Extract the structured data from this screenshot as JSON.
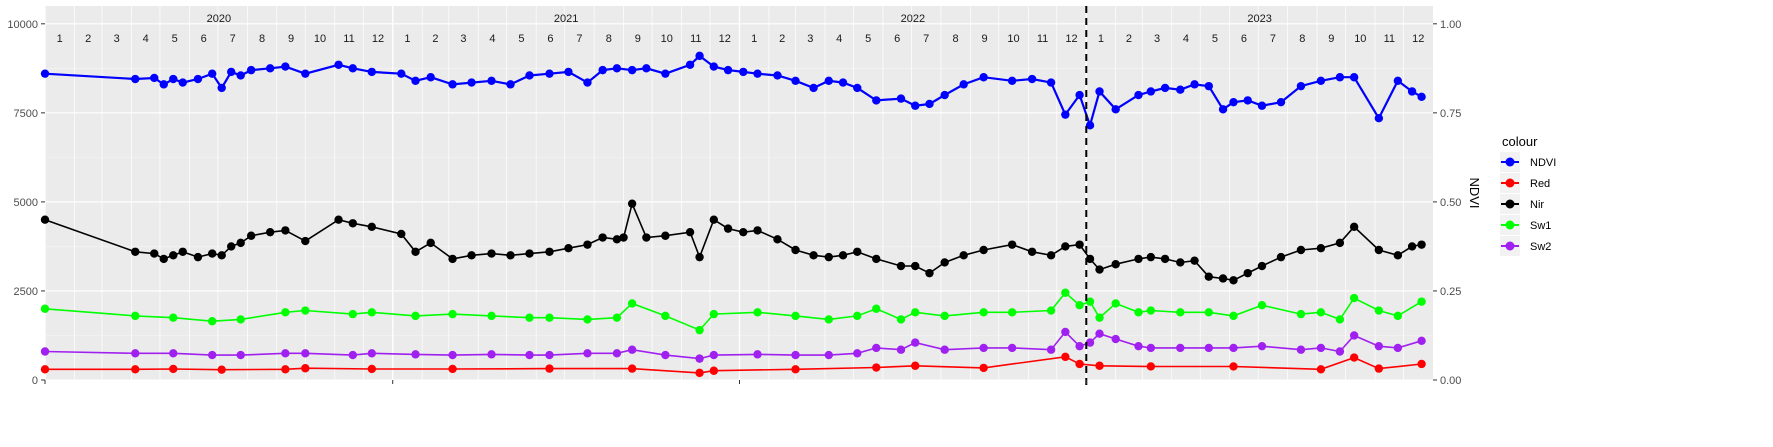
{
  "chart_data": {
    "type": "line",
    "title": "",
    "xlabel": "",
    "ylabel": "",
    "y2label": "NDVI",
    "ylim": [
      0,
      10500
    ],
    "yticks": [
      0,
      2500,
      5000,
      7500,
      10000
    ],
    "y2lim": [
      0,
      1.05
    ],
    "y2ticks": [
      "0.00",
      "0.25",
      "0.50",
      "0.75",
      "1.00"
    ],
    "grid": true,
    "legend_position": "right",
    "legend_title": "colour",
    "x_range": [
      "2020-01-01",
      "2023-12-31"
    ],
    "years": [
      "2020",
      "2021",
      "2022",
      "2023"
    ],
    "months": [
      "1",
      "2",
      "3",
      "4",
      "5",
      "6",
      "7",
      "8",
      "9",
      "10",
      "11",
      "12"
    ],
    "vline_date": "2022-12-31",
    "series": [
      {
        "name": "NDVI",
        "color": "#0000FF",
        "x": [
          "2020-01-01",
          "2020-04-05",
          "2020-04-25",
          "2020-05-05",
          "2020-05-15",
          "2020-05-25",
          "2020-06-10",
          "2020-06-25",
          "2020-07-05",
          "2020-07-15",
          "2020-07-25",
          "2020-08-05",
          "2020-08-25",
          "2020-09-10",
          "2020-10-01",
          "2020-11-05",
          "2020-11-20",
          "2020-12-10",
          "2021-01-10",
          "2021-01-25",
          "2021-02-10",
          "2021-03-05",
          "2021-03-25",
          "2021-04-15",
          "2021-05-05",
          "2021-05-25",
          "2021-06-15",
          "2021-07-05",
          "2021-07-25",
          "2021-08-10",
          "2021-08-25",
          "2021-09-10",
          "2021-09-25",
          "2021-10-15",
          "2021-11-10",
          "2021-11-20",
          "2021-12-05",
          "2021-12-20",
          "2022-01-05",
          "2022-01-20",
          "2022-02-10",
          "2022-03-01",
          "2022-03-20",
          "2022-04-05",
          "2022-04-20",
          "2022-05-05",
          "2022-05-25",
          "2022-06-20",
          "2022-07-05",
          "2022-07-20",
          "2022-08-05",
          "2022-08-25",
          "2022-09-15",
          "2022-10-15",
          "2022-11-05",
          "2022-11-25",
          "2022-12-10",
          "2022-12-25",
          "2023-01-05",
          "2023-01-15",
          "2023-02-01",
          "2023-02-25",
          "2023-03-10",
          "2023-03-25",
          "2023-04-10",
          "2023-04-25",
          "2023-05-10",
          "2023-05-25",
          "2023-06-05",
          "2023-06-20",
          "2023-07-05",
          "2023-07-25",
          "2023-08-15",
          "2023-09-05",
          "2023-09-25",
          "2023-10-10",
          "2023-11-05",
          "2023-11-25",
          "2023-12-10",
          "2023-12-20"
        ],
        "values": [
          8600,
          8450,
          8480,
          8300,
          8450,
          8350,
          8450,
          8600,
          8200,
          8650,
          8550,
          8700,
          8750,
          8800,
          8600,
          8850,
          8750,
          8650,
          8600,
          8400,
          8500,
          8300,
          8350,
          8400,
          8300,
          8550,
          8600,
          8650,
          8350,
          8700,
          8750,
          8700,
          8750,
          8600,
          8850,
          9100,
          8800,
          8700,
          8650,
          8600,
          8550,
          8400,
          8200,
          8400,
          8350,
          8200,
          7850,
          7900,
          7700,
          7750,
          8000,
          8300,
          8500,
          8400,
          8450,
          8350,
          7450,
          8000,
          7150,
          8100,
          7600,
          8000,
          8100,
          8200,
          8150,
          8300,
          8250,
          7600,
          7800,
          7850,
          7700,
          7800,
          8250,
          8400,
          8500,
          8500,
          7350,
          8400,
          8100,
          7950
        ]
      },
      {
        "name": "Red",
        "color": "#FF0000",
        "x": [
          "2020-01-01",
          "2020-04-05",
          "2020-05-15",
          "2020-07-05",
          "2020-09-10",
          "2020-10-01",
          "2020-12-10",
          "2021-03-05",
          "2021-06-15",
          "2021-09-10",
          "2021-11-20",
          "2021-12-05",
          "2022-03-01",
          "2022-05-25",
          "2022-07-05",
          "2022-09-15",
          "2022-12-10",
          "2022-12-25",
          "2023-01-15",
          "2023-03-10",
          "2023-06-05",
          "2023-09-05",
          "2023-10-10",
          "2023-11-05",
          "2023-12-20"
        ],
        "values": [
          300,
          300,
          310,
          290,
          300,
          330,
          310,
          310,
          320,
          320,
          200,
          260,
          300,
          350,
          400,
          340,
          650,
          450,
          400,
          380,
          380,
          300,
          630,
          320,
          450
        ]
      },
      {
        "name": "Nir",
        "color": "#000000",
        "x": [
          "2020-01-01",
          "2020-04-05",
          "2020-04-25",
          "2020-05-05",
          "2020-05-15",
          "2020-05-25",
          "2020-06-10",
          "2020-06-25",
          "2020-07-05",
          "2020-07-15",
          "2020-07-25",
          "2020-08-05",
          "2020-08-25",
          "2020-09-10",
          "2020-10-01",
          "2020-11-05",
          "2020-11-20",
          "2020-12-10",
          "2021-01-10",
          "2021-01-25",
          "2021-02-10",
          "2021-03-05",
          "2021-03-25",
          "2021-04-15",
          "2021-05-05",
          "2021-05-25",
          "2021-06-15",
          "2021-07-05",
          "2021-07-25",
          "2021-08-10",
          "2021-08-25",
          "2021-09-01",
          "2021-09-10",
          "2021-09-25",
          "2021-10-15",
          "2021-11-10",
          "2021-11-20",
          "2021-12-05",
          "2021-12-20",
          "2022-01-05",
          "2022-01-20",
          "2022-02-10",
          "2022-03-01",
          "2022-03-20",
          "2022-04-05",
          "2022-04-20",
          "2022-05-05",
          "2022-05-25",
          "2022-06-20",
          "2022-07-05",
          "2022-07-20",
          "2022-08-05",
          "2022-08-25",
          "2022-09-15",
          "2022-10-15",
          "2022-11-05",
          "2022-11-25",
          "2022-12-10",
          "2022-12-25",
          "2023-01-05",
          "2023-01-15",
          "2023-02-01",
          "2023-02-25",
          "2023-03-10",
          "2023-03-25",
          "2023-04-10",
          "2023-04-25",
          "2023-05-10",
          "2023-05-25",
          "2023-06-05",
          "2023-06-20",
          "2023-07-05",
          "2023-07-25",
          "2023-08-15",
          "2023-09-05",
          "2023-09-25",
          "2023-10-10",
          "2023-11-05",
          "2023-11-25",
          "2023-12-10",
          "2023-12-20"
        ],
        "values": [
          4500,
          3600,
          3550,
          3400,
          3500,
          3600,
          3450,
          3550,
          3500,
          3750,
          3850,
          4050,
          4150,
          4200,
          3900,
          4500,
          4400,
          4300,
          4100,
          3600,
          3850,
          3400,
          3500,
          3550,
          3500,
          3550,
          3600,
          3700,
          3800,
          4000,
          3950,
          4000,
          4950,
          4000,
          4050,
          4150,
          3450,
          4500,
          4250,
          4150,
          4200,
          3950,
          3650,
          3500,
          3450,
          3500,
          3600,
          3400,
          3200,
          3200,
          3000,
          3300,
          3500,
          3650,
          3800,
          3600,
          3500,
          3750,
          3800,
          3400,
          3100,
          3250,
          3400,
          3450,
          3400,
          3300,
          3350,
          2900,
          2850,
          2800,
          3000,
          3200,
          3450,
          3650,
          3700,
          3850,
          4300,
          3650,
          3500,
          3750,
          3800
        ]
      },
      {
        "name": "Sw1",
        "color": "#00FF00",
        "x": [
          "2020-01-01",
          "2020-04-05",
          "2020-05-15",
          "2020-06-25",
          "2020-07-25",
          "2020-09-10",
          "2020-10-01",
          "2020-11-20",
          "2020-12-10",
          "2021-01-25",
          "2021-03-05",
          "2021-04-15",
          "2021-05-25",
          "2021-06-15",
          "2021-07-25",
          "2021-08-25",
          "2021-09-10",
          "2021-10-15",
          "2021-11-20",
          "2021-12-05",
          "2022-01-20",
          "2022-03-01",
          "2022-04-05",
          "2022-05-05",
          "2022-05-25",
          "2022-06-20",
          "2022-07-05",
          "2022-08-05",
          "2022-09-15",
          "2022-10-15",
          "2022-11-25",
          "2022-12-10",
          "2022-12-25",
          "2023-01-05",
          "2023-01-15",
          "2023-02-01",
          "2023-02-25",
          "2023-03-10",
          "2023-04-10",
          "2023-05-10",
          "2023-06-05",
          "2023-07-05",
          "2023-08-15",
          "2023-09-05",
          "2023-09-25",
          "2023-10-10",
          "2023-11-05",
          "2023-11-25",
          "2023-12-20"
        ],
        "values": [
          2000,
          1800,
          1750,
          1650,
          1700,
          1900,
          1950,
          1850,
          1900,
          1800,
          1850,
          1800,
          1750,
          1750,
          1700,
          1750,
          2150,
          1800,
          1400,
          1850,
          1900,
          1800,
          1700,
          1800,
          2000,
          1700,
          1900,
          1800,
          1900,
          1900,
          1950,
          2450,
          2100,
          2200,
          1750,
          2150,
          1900,
          1950,
          1900,
          1900,
          1800,
          2100,
          1850,
          1900,
          1700,
          2300,
          1950,
          1800,
          2200
        ]
      },
      {
        "name": "Sw2",
        "color": "#A020F0",
        "x": [
          "2020-01-01",
          "2020-04-05",
          "2020-05-15",
          "2020-06-25",
          "2020-07-25",
          "2020-09-10",
          "2020-10-01",
          "2020-11-20",
          "2020-12-10",
          "2021-01-25",
          "2021-03-05",
          "2021-04-15",
          "2021-05-25",
          "2021-06-15",
          "2021-07-25",
          "2021-08-25",
          "2021-09-10",
          "2021-10-15",
          "2021-11-20",
          "2021-12-05",
          "2022-01-20",
          "2022-03-01",
          "2022-04-05",
          "2022-05-05",
          "2022-05-25",
          "2022-06-20",
          "2022-07-05",
          "2022-08-05",
          "2022-09-15",
          "2022-10-15",
          "2022-11-25",
          "2022-12-10",
          "2022-12-25",
          "2023-01-05",
          "2023-01-15",
          "2023-02-01",
          "2023-02-25",
          "2023-03-10",
          "2023-04-10",
          "2023-05-10",
          "2023-06-05",
          "2023-07-05",
          "2023-08-15",
          "2023-09-05",
          "2023-09-25",
          "2023-10-10",
          "2023-11-05",
          "2023-11-25",
          "2023-12-20"
        ],
        "values": [
          800,
          750,
          750,
          700,
          700,
          750,
          750,
          700,
          750,
          720,
          700,
          720,
          700,
          700,
          750,
          750,
          850,
          700,
          600,
          700,
          720,
          700,
          700,
          750,
          900,
          850,
          1050,
          850,
          900,
          900,
          850,
          1350,
          950,
          1050,
          1300,
          1150,
          950,
          900,
          900,
          900,
          900,
          950,
          850,
          900,
          800,
          1250,
          950,
          900,
          1100
        ]
      }
    ]
  }
}
